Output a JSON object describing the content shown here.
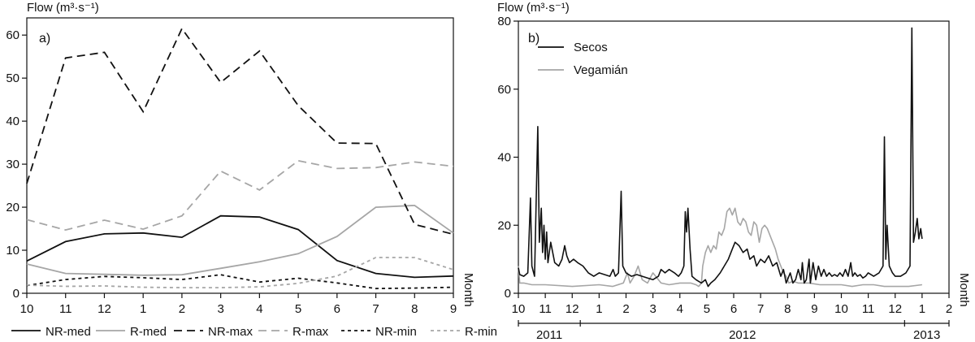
{
  "chart_data": [
    {
      "type": "line",
      "panel_label": "a)",
      "ylabel": "Flow (m³·s⁻¹)",
      "xlabel": "Month",
      "x": [
        "10",
        "11",
        "12",
        "1",
        "2",
        "3",
        "4",
        "5",
        "6",
        "7",
        "8",
        "9"
      ],
      "ylim": [
        0,
        64
      ],
      "yticks": [
        0,
        10,
        20,
        30,
        40,
        50,
        60
      ],
      "grid": false,
      "legend_position": "bottom",
      "series": [
        {
          "name": "NR-med",
          "color": "#111111",
          "dash": "solid",
          "values": [
            7.5,
            12.0,
            13.8,
            14.0,
            13.0,
            18.0,
            17.7,
            14.8,
            7.6,
            4.6,
            3.7,
            4.0
          ]
        },
        {
          "name": "R-med",
          "color": "#a6a6a6",
          "dash": "solid",
          "values": [
            6.8,
            4.6,
            4.4,
            4.2,
            4.3,
            5.8,
            7.3,
            9.2,
            13.2,
            20.0,
            20.4,
            14.0
          ]
        },
        {
          "name": "NR-max",
          "color": "#111111",
          "dash": "long",
          "values": [
            25.5,
            54.7,
            56.0,
            42.2,
            61.5,
            49.0,
            56.3,
            43.6,
            34.9,
            34.8,
            16.0,
            13.7
          ]
        },
        {
          "name": "R-max",
          "color": "#a6a6a6",
          "dash": "long",
          "values": [
            17.1,
            14.7,
            17.0,
            14.9,
            18.0,
            28.4,
            24.0,
            30.8,
            29.0,
            29.2,
            30.5,
            29.5
          ]
        },
        {
          "name": "NR-min",
          "color": "#111111",
          "dash": "short",
          "values": [
            1.8,
            3.2,
            3.9,
            3.6,
            3.2,
            4.3,
            2.6,
            3.5,
            2.4,
            1.1,
            1.2,
            1.4
          ]
        },
        {
          "name": "R-min",
          "color": "#a6a6a6",
          "dash": "short",
          "values": [
            1.9,
            1.6,
            1.7,
            1.4,
            1.3,
            1.3,
            1.5,
            2.3,
            4.0,
            8.3,
            8.3,
            5.5
          ]
        }
      ]
    },
    {
      "type": "line",
      "panel_label": "b)",
      "ylabel": "Flow (m³·s⁻¹)",
      "xlabel": "Month",
      "month_ticks": [
        "10",
        "11",
        "12",
        "1",
        "2",
        "3",
        "4",
        "5",
        "6",
        "7",
        "8",
        "9",
        "10",
        "11",
        "12",
        "1",
        "2"
      ],
      "years": [
        "2011",
        "2012",
        "2013"
      ],
      "ylim": [
        0,
        80
      ],
      "yticks": [
        0,
        20,
        40,
        60,
        80
      ],
      "grid": false,
      "legend_position": "top-left",
      "series": [
        {
          "name": "Secos",
          "color": "#111111",
          "points": [
            [
              0.0,
              7.5
            ],
            [
              0.05,
              5.5
            ],
            [
              0.2,
              5
            ],
            [
              0.35,
              6
            ],
            [
              0.45,
              28
            ],
            [
              0.5,
              8
            ],
            [
              0.6,
              5
            ],
            [
              0.72,
              49
            ],
            [
              0.78,
              15
            ],
            [
              0.85,
              25
            ],
            [
              0.9,
              12
            ],
            [
              0.95,
              20
            ],
            [
              1.0,
              10
            ],
            [
              1.05,
              18
            ],
            [
              1.1,
              9
            ],
            [
              1.2,
              15
            ],
            [
              1.35,
              9
            ],
            [
              1.5,
              8
            ],
            [
              1.62,
              10
            ],
            [
              1.72,
              14
            ],
            [
              1.8,
              11
            ],
            [
              1.9,
              9
            ],
            [
              2.05,
              10
            ],
            [
              2.2,
              9
            ],
            [
              2.4,
              8
            ],
            [
              2.6,
              6
            ],
            [
              2.8,
              5
            ],
            [
              3.0,
              6
            ],
            [
              3.2,
              5.5
            ],
            [
              3.4,
              5
            ],
            [
              3.52,
              7
            ],
            [
              3.6,
              5
            ],
            [
              3.72,
              6
            ],
            [
              3.82,
              30
            ],
            [
              3.88,
              8
            ],
            [
              4.0,
              6
            ],
            [
              4.2,
              5
            ],
            [
              4.4,
              5.5
            ],
            [
              4.6,
              5
            ],
            [
              4.8,
              4.5
            ],
            [
              5.0,
              4
            ],
            [
              5.2,
              5
            ],
            [
              5.3,
              7
            ],
            [
              5.45,
              6
            ],
            [
              5.6,
              7
            ],
            [
              5.8,
              6
            ],
            [
              5.95,
              5
            ],
            [
              6.05,
              6
            ],
            [
              6.15,
              8
            ],
            [
              6.2,
              24
            ],
            [
              6.25,
              18
            ],
            [
              6.3,
              25
            ],
            [
              6.38,
              13
            ],
            [
              6.45,
              5
            ],
            [
              6.6,
              4
            ],
            [
              6.8,
              3
            ],
            [
              6.95,
              4
            ],
            [
              7.05,
              2
            ],
            [
              7.15,
              3
            ],
            [
              7.3,
              4
            ],
            [
              7.5,
              6
            ],
            [
              7.65,
              8
            ],
            [
              7.8,
              10
            ],
            [
              7.95,
              13
            ],
            [
              8.05,
              15
            ],
            [
              8.2,
              14
            ],
            [
              8.35,
              12
            ],
            [
              8.5,
              13
            ],
            [
              8.6,
              10
            ],
            [
              8.75,
              11
            ],
            [
              8.85,
              8
            ],
            [
              9.0,
              10
            ],
            [
              9.15,
              9
            ],
            [
              9.3,
              11
            ],
            [
              9.45,
              8
            ],
            [
              9.6,
              9
            ],
            [
              9.75,
              5
            ],
            [
              9.85,
              7
            ],
            [
              9.95,
              3
            ],
            [
              10.1,
              6
            ],
            [
              10.2,
              3
            ],
            [
              10.3,
              4
            ],
            [
              10.4,
              7
            ],
            [
              10.5,
              4
            ],
            [
              10.55,
              9
            ],
            [
              10.62,
              3
            ],
            [
              10.7,
              4
            ],
            [
              10.8,
              10
            ],
            [
              10.85,
              3
            ],
            [
              10.95,
              9
            ],
            [
              11.05,
              4
            ],
            [
              11.15,
              8
            ],
            [
              11.25,
              5
            ],
            [
              11.35,
              7
            ],
            [
              11.45,
              5
            ],
            [
              11.55,
              6
            ],
            [
              11.65,
              5
            ],
            [
              11.75,
              5.5
            ],
            [
              11.85,
              5
            ],
            [
              11.95,
              6
            ],
            [
              12.05,
              5
            ],
            [
              12.15,
              7
            ],
            [
              12.25,
              5
            ],
            [
              12.35,
              9
            ],
            [
              12.42,
              5
            ],
            [
              12.5,
              6
            ],
            [
              12.6,
              5
            ],
            [
              12.7,
              5.5
            ],
            [
              12.8,
              4.5
            ],
            [
              12.9,
              5
            ],
            [
              13.0,
              6
            ],
            [
              13.2,
              5
            ],
            [
              13.4,
              6
            ],
            [
              13.55,
              8
            ],
            [
              13.6,
              46
            ],
            [
              13.65,
              10
            ],
            [
              13.7,
              20
            ],
            [
              13.78,
              8
            ],
            [
              13.9,
              6
            ],
            [
              14.0,
              5
            ],
            [
              14.2,
              5
            ],
            [
              14.4,
              6
            ],
            [
              14.55,
              8
            ],
            [
              14.62,
              78
            ],
            [
              14.68,
              15
            ],
            [
              14.75,
              18
            ],
            [
              14.82,
              22
            ],
            [
              14.88,
              16
            ],
            [
              14.95,
              19
            ],
            [
              15.0,
              16
            ]
          ]
        },
        {
          "name": "Vegamián",
          "color": "#a6a6a6",
          "points": [
            [
              0.0,
              8
            ],
            [
              0.05,
              3
            ],
            [
              0.2,
              3
            ],
            [
              0.5,
              2.5
            ],
            [
              1.0,
              2.5
            ],
            [
              2.0,
              2
            ],
            [
              3.0,
              2.5
            ],
            [
              3.5,
              2
            ],
            [
              3.9,
              3
            ],
            [
              4.05,
              6
            ],
            [
              4.15,
              3
            ],
            [
              4.3,
              5
            ],
            [
              4.45,
              8
            ],
            [
              4.6,
              4
            ],
            [
              4.8,
              3
            ],
            [
              5.0,
              6
            ],
            [
              5.3,
              3
            ],
            [
              5.6,
              2.5
            ],
            [
              6.0,
              3
            ],
            [
              6.4,
              3
            ],
            [
              6.6,
              2.5
            ],
            [
              6.7,
              2
            ],
            [
              6.8,
              3
            ],
            [
              6.85,
              8
            ],
            [
              6.95,
              12
            ],
            [
              7.05,
              14
            ],
            [
              7.15,
              12
            ],
            [
              7.25,
              14
            ],
            [
              7.35,
              13
            ],
            [
              7.45,
              18
            ],
            [
              7.55,
              17
            ],
            [
              7.65,
              19
            ],
            [
              7.75,
              24
            ],
            [
              7.85,
              25
            ],
            [
              7.95,
              23
            ],
            [
              8.05,
              25
            ],
            [
              8.15,
              21
            ],
            [
              8.25,
              20
            ],
            [
              8.35,
              22
            ],
            [
              8.45,
              21
            ],
            [
              8.55,
              18
            ],
            [
              8.65,
              17
            ],
            [
              8.75,
              21
            ],
            [
              8.85,
              20
            ],
            [
              8.95,
              15
            ],
            [
              9.05,
              19
            ],
            [
              9.15,
              20
            ],
            [
              9.25,
              19
            ],
            [
              9.35,
              17
            ],
            [
              9.45,
              15
            ],
            [
              9.55,
              13
            ],
            [
              9.65,
              10
            ],
            [
              9.75,
              8
            ],
            [
              9.85,
              6
            ],
            [
              9.95,
              5
            ],
            [
              10.05,
              3
            ],
            [
              10.2,
              3.5
            ],
            [
              10.4,
              3
            ],
            [
              10.8,
              3
            ],
            [
              11.2,
              2.5
            ],
            [
              11.6,
              2.5
            ],
            [
              12.0,
              2.5
            ],
            [
              12.4,
              2
            ],
            [
              12.8,
              2.5
            ],
            [
              13.2,
              2.5
            ],
            [
              13.6,
              2
            ],
            [
              14.0,
              2
            ],
            [
              14.5,
              2
            ],
            [
              15.0,
              2.5
            ]
          ]
        }
      ]
    }
  ]
}
